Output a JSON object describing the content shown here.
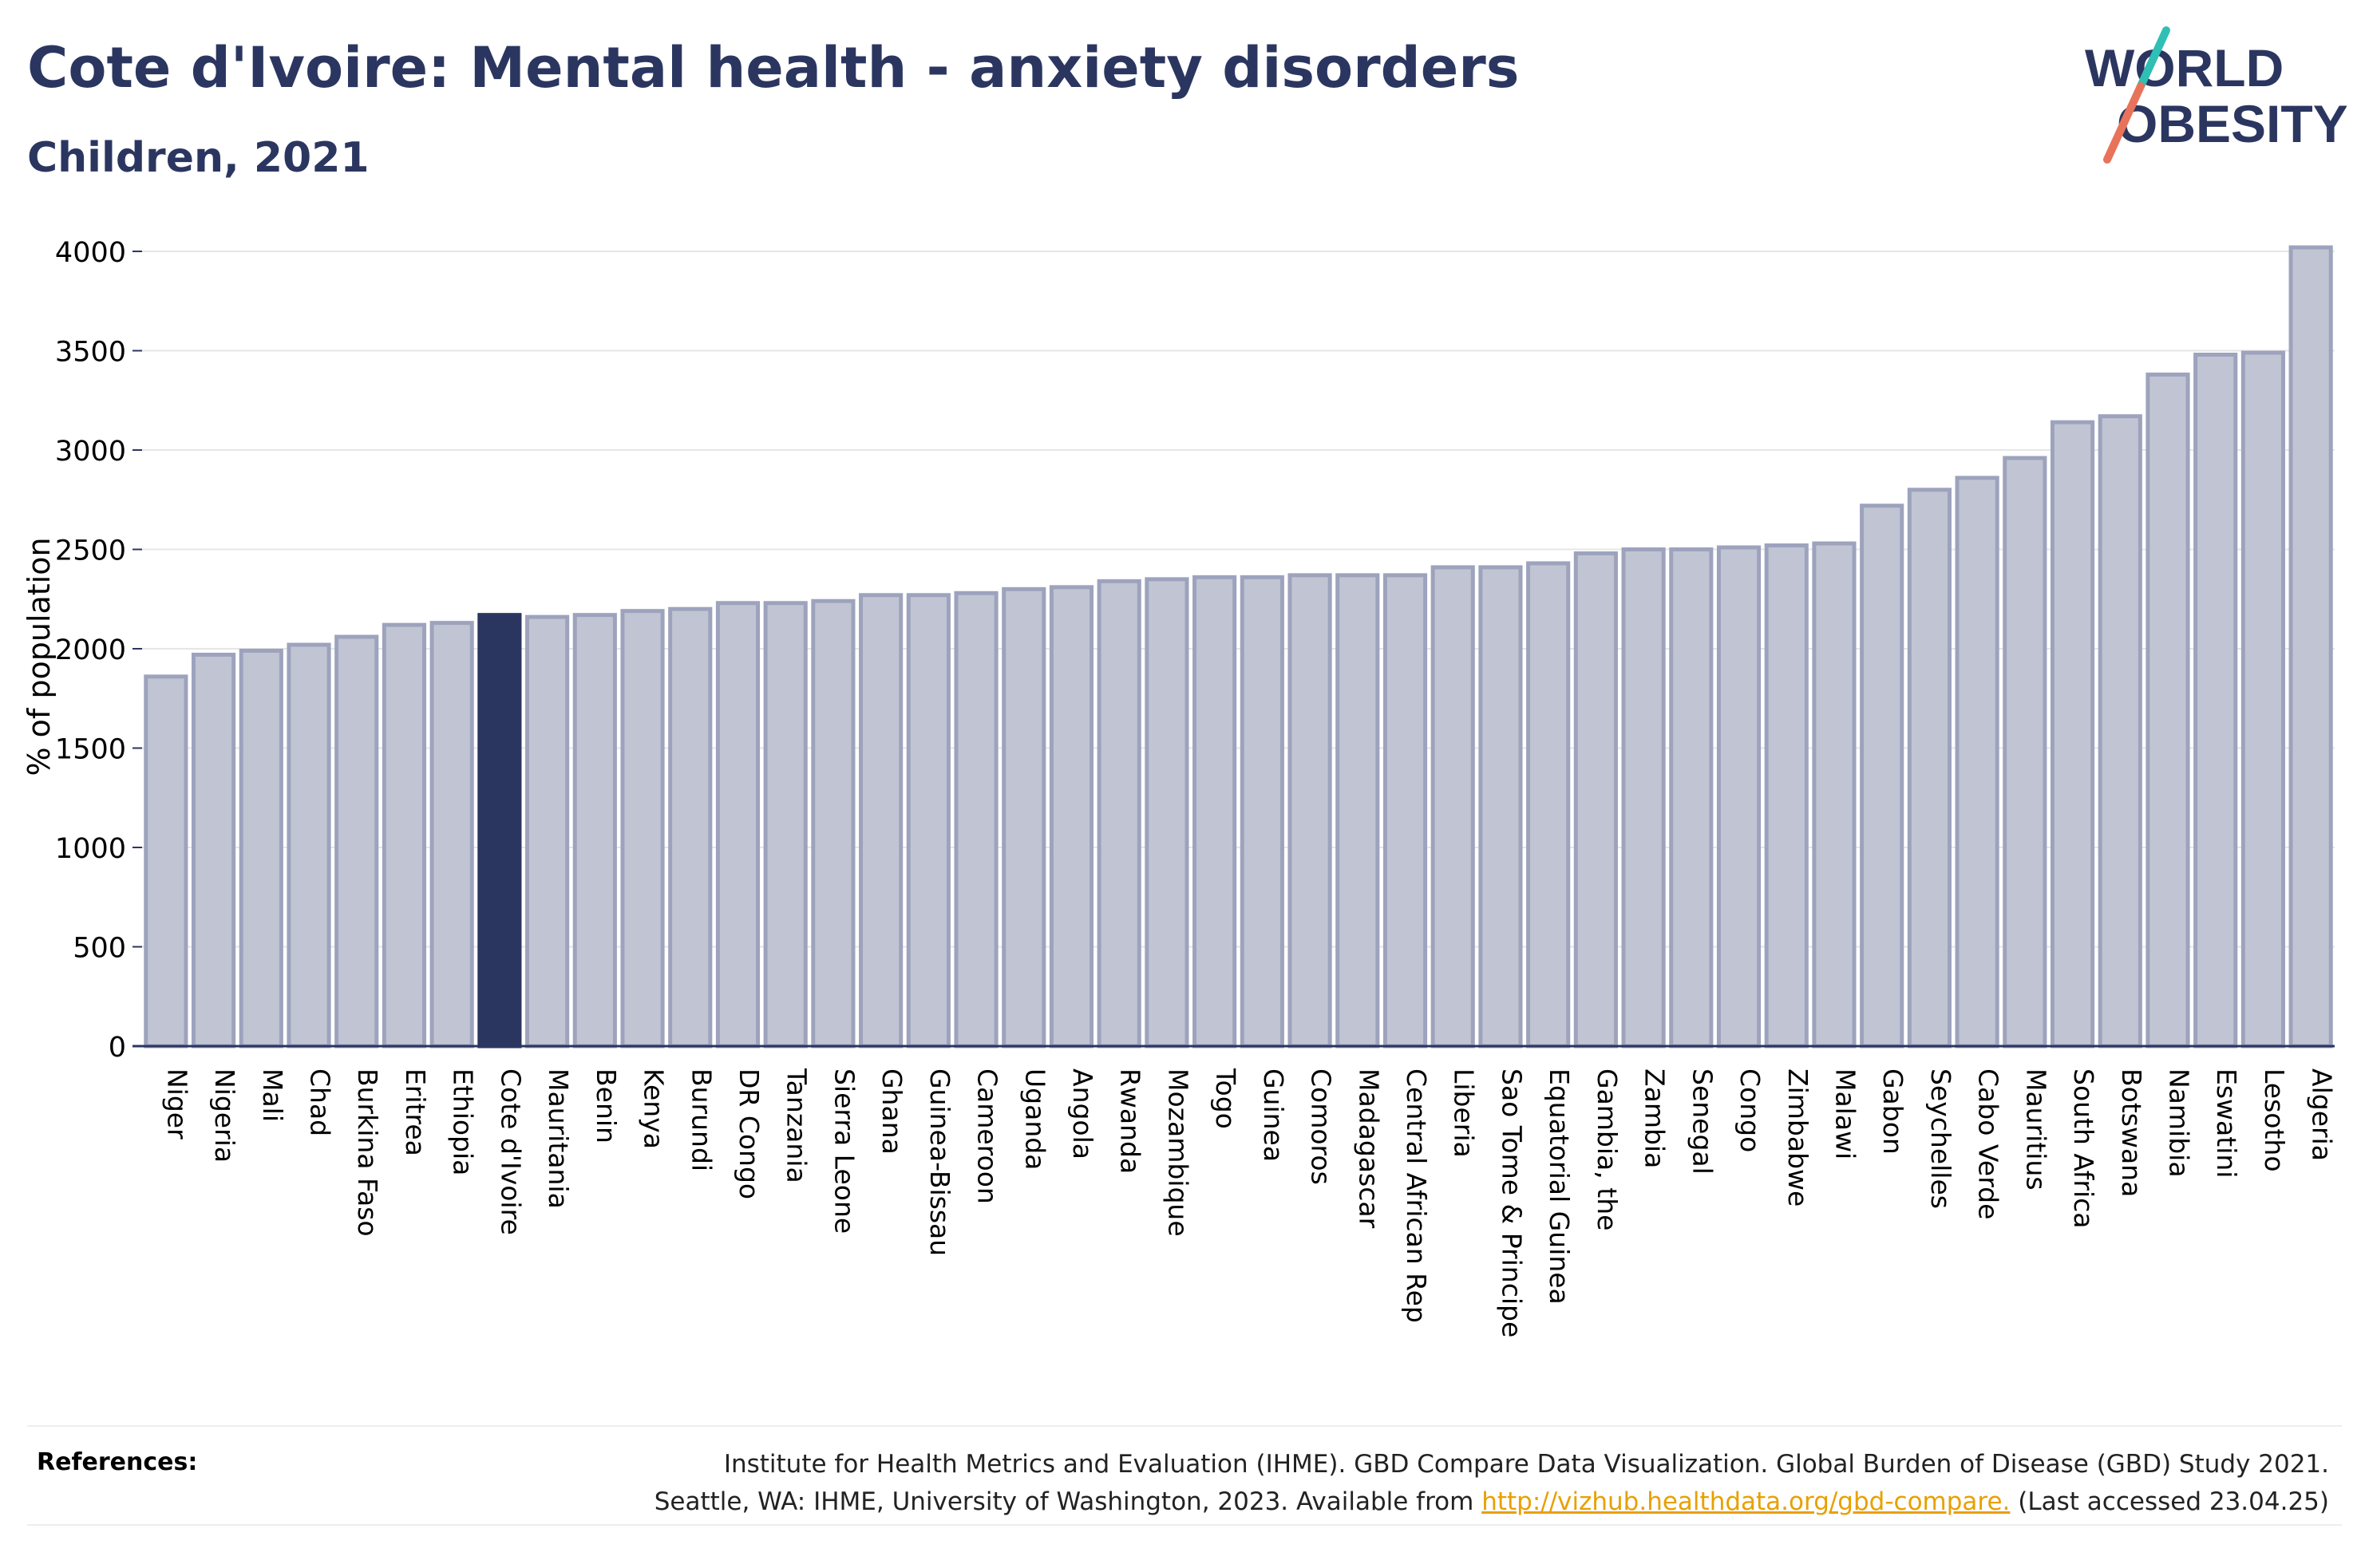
{
  "header": {
    "title": "Cote d'Ivoire: Mental health - anxiety disorders",
    "subtitle": "Children, 2021"
  },
  "logo": {
    "line1": "WORLD",
    "line2": "OBESITY",
    "icon": "slash-mark-icon",
    "colors": {
      "text": "#2b3660",
      "slash_top": "#2fbfb4",
      "slash_bottom": "#e8735a"
    }
  },
  "chart_data": {
    "type": "bar",
    "title": "",
    "xlabel": "",
    "ylabel": "% of population",
    "ylim": [
      0,
      4000
    ],
    "yticks": [
      0,
      500,
      1000,
      1500,
      2000,
      2500,
      3000,
      3500,
      4000
    ],
    "grid": true,
    "legend": "none",
    "highlight": "Cote d'Ivoire",
    "colors": {
      "bar": "#c1c5d3",
      "bar_border": "#9da3bd",
      "highlight": "#2b3660"
    },
    "categories": [
      "Niger",
      "Nigeria",
      "Mali",
      "Chad",
      "Burkina Faso",
      "Eritrea",
      "Ethiopia",
      "Cote d'Ivoire",
      "Mauritania",
      "Benin",
      "Kenya",
      "Burundi",
      "DR Congo",
      "Tanzania",
      "Sierra Leone",
      "Ghana",
      "Guinea-Bissau",
      "Cameroon",
      "Uganda",
      "Angola",
      "Rwanda",
      "Mozambique",
      "Togo",
      "Guinea",
      "Comoros",
      "Madagascar",
      "Central African Rep",
      "Liberia",
      "Sao Tome & Principe",
      "Equatorial Guinea",
      "Gambia, the",
      "Zambia",
      "Senegal",
      "Congo",
      "Zimbabwe",
      "Malawi",
      "Gabon",
      "Seychelles",
      "Cabo Verde",
      "Mauritius",
      "South Africa",
      "Botswana",
      "Namibia",
      "Eswatini",
      "Lesotho",
      "Algeria"
    ],
    "values": [
      1860,
      1970,
      1990,
      2020,
      2060,
      2120,
      2130,
      2170,
      2160,
      2170,
      2190,
      2200,
      2230,
      2230,
      2240,
      2270,
      2270,
      2280,
      2300,
      2310,
      2340,
      2350,
      2360,
      2360,
      2370,
      2370,
      2370,
      2410,
      2410,
      2430,
      2480,
      2500,
      2500,
      2510,
      2520,
      2530,
      2720,
      2800,
      2860,
      2960,
      3140,
      3170,
      3380,
      3480,
      3490,
      4020
    ]
  },
  "references": {
    "label": "References:",
    "line1": "Institute for Health Metrics and Evaluation (IHME). GBD Compare Data Visualization. Global Burden of Disease (GBD) Study 2021.",
    "line2_prefix": "Seattle, WA: IHME, University of Washington, 2023. Available from ",
    "link": "http://vizhub.healthdata.org/gbd-compare.",
    "line2_suffix": " (Last accessed 23.04.25)"
  }
}
